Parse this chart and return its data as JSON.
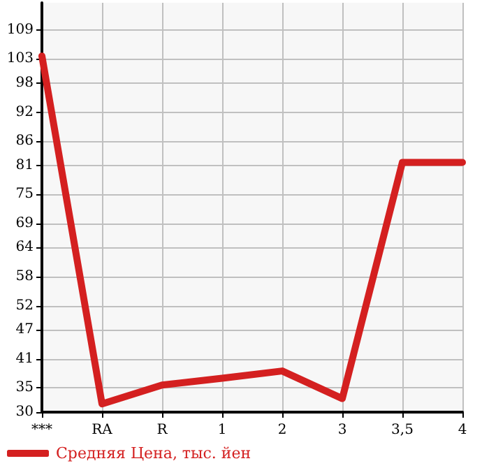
{
  "chart_data": {
    "type": "line",
    "categories": [
      "***",
      "RA",
      "R",
      "1",
      "2",
      "3",
      "3,5",
      "4"
    ],
    "series": [
      {
        "name": "Средняя Цена, тыс. йен",
        "color": "#d42020",
        "values": [
          103.6,
          31.7,
          35.6,
          37,
          38.5,
          32.8,
          81.6,
          81.6
        ]
      }
    ],
    "ylim": [
      30,
      114.6
    ],
    "yticks": [
      30,
      35,
      41,
      47,
      52,
      58,
      64,
      69,
      75,
      81,
      86,
      92,
      98,
      103,
      109
    ],
    "grid": true,
    "legend": "bottom left",
    "marker": "none",
    "line_style": "solid"
  }
}
